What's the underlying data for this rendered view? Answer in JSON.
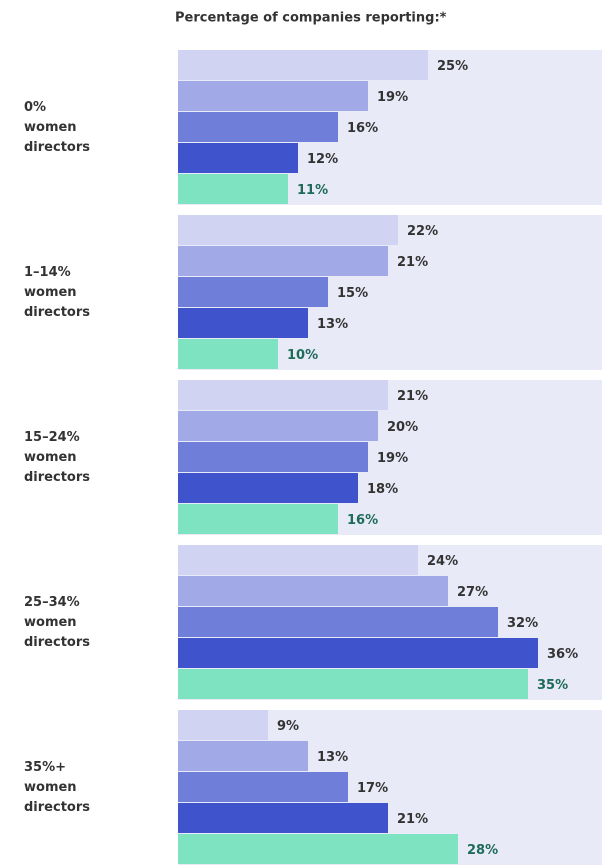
{
  "chart_data": {
    "type": "bar",
    "orientation": "horizontal",
    "title": "Percentage of companies reporting:*",
    "categories": [
      "0%\nwomen\ndirectors",
      "1–14%\nwomen\ndirectors",
      "15–24%\nwomen\ndirectors",
      "25–34%\nwomen\ndirectors",
      "35%+\nwomen\ndirectors"
    ],
    "xlim": [
      0,
      42.4
    ],
    "background_color": "#e9eaf8",
    "series": [
      {
        "color": "#d0d4f2",
        "values": [
          25,
          22,
          21,
          24,
          9
        ],
        "value_labels": [
          "25%",
          "22%",
          "21%",
          "24%",
          "9%"
        ]
      },
      {
        "color": "#a1a9e7",
        "values": [
          19,
          21,
          20,
          27,
          13
        ],
        "value_labels": [
          "19%",
          "21%",
          "20%",
          "27%",
          "13%"
        ]
      },
      {
        "color": "#6e7ed9",
        "values": [
          16,
          15,
          19,
          32,
          17
        ],
        "value_labels": [
          "16%",
          "15%",
          "19%",
          "32%",
          "17%"
        ]
      },
      {
        "color": "#3e53cc",
        "values": [
          12,
          13,
          18,
          36,
          21
        ],
        "value_labels": [
          "12%",
          "13%",
          "18%",
          "36%",
          "21%"
        ]
      },
      {
        "color": "#7ee3c1",
        "values": [
          11,
          10,
          16,
          35,
          28
        ],
        "value_labels": [
          "11%",
          "10%",
          "16%",
          "35%",
          "28%"
        ],
        "label_color": "#1d6b58"
      }
    ]
  }
}
